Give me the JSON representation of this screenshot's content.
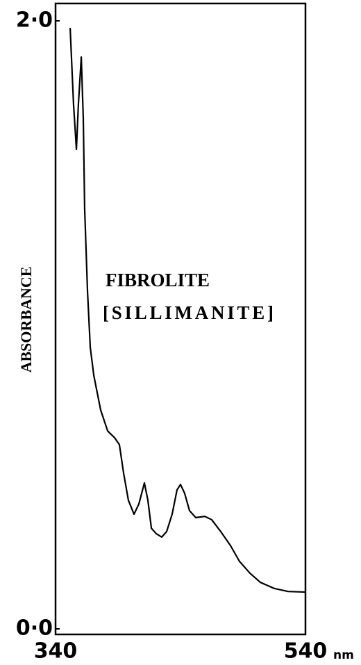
{
  "chart_data": {
    "type": "line",
    "y_label": "ABSORBANCE",
    "x_label": "nm",
    "annotations": [
      "FIBROLITE",
      "[SILLIMANITE]"
    ],
    "xlim": [
      340,
      540
    ],
    "xticks": [
      340,
      540
    ],
    "ylim": [
      0,
      2
    ],
    "yticks": [
      {
        "value": 0,
        "label": "0·0"
      },
      {
        "value": 2,
        "label": "2·0"
      }
    ],
    "grid": false,
    "series": [
      {
        "color": "#000000",
        "x": [
          351.7,
          354.4,
          356.7,
          358.3,
          360.6,
          362.2,
          363.3,
          365.6,
          367.8,
          370.6,
          376.1,
          381.7,
          387.2,
          391.1,
          394.4,
          398.3,
          402.8,
          406.7,
          411.1,
          413.9,
          416.7,
          420.6,
          425.0,
          428.9,
          433.3,
          437.2,
          440.0,
          443.3,
          447.2,
          452.2,
          459.4,
          465.0,
          472.2,
          480.0,
          487.2,
          495.6,
          503.9,
          515.0,
          526.1,
          540
        ],
        "values": [
          1.977,
          1.726,
          1.577,
          1.726,
          1.881,
          1.68,
          1.383,
          1.109,
          0.926,
          0.834,
          0.72,
          0.651,
          0.629,
          0.606,
          0.514,
          0.423,
          0.377,
          0.411,
          0.48,
          0.423,
          0.331,
          0.313,
          0.302,
          0.32,
          0.377,
          0.457,
          0.475,
          0.446,
          0.389,
          0.366,
          0.37,
          0.359,
          0.32,
          0.274,
          0.222,
          0.183,
          0.153,
          0.133,
          0.123,
          0.121
        ]
      }
    ]
  }
}
